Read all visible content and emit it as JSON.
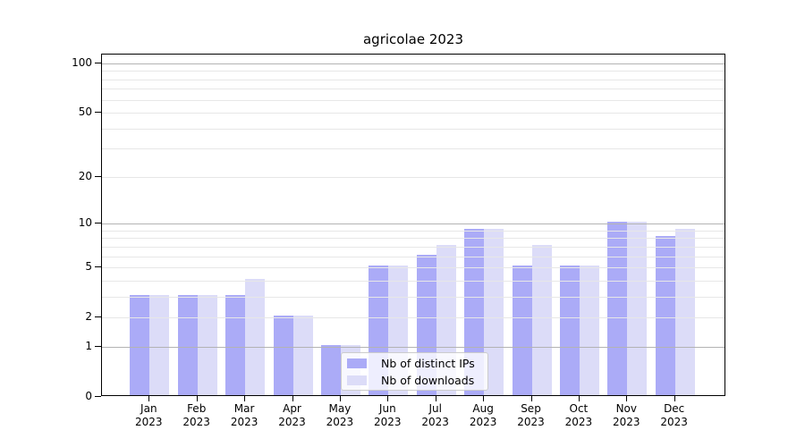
{
  "figure": {
    "background": "#ffffff"
  },
  "chart_data": {
    "type": "bar",
    "title": "agricolae 2023",
    "categories": [
      "Jan 2023",
      "Feb 2023",
      "Mar 2023",
      "Apr 2023",
      "May 2023",
      "Jun 2023",
      "Jul 2023",
      "Aug 2023",
      "Sep 2023",
      "Oct 2023",
      "Nov 2023",
      "Dec 2023"
    ],
    "series": [
      {
        "name": "Nb of distinct IPs",
        "color": "#ababf7",
        "values": [
          3,
          3,
          3,
          2,
          1,
          5,
          6,
          9,
          5,
          5,
          10,
          8
        ]
      },
      {
        "name": "Nb of downloads",
        "color": "#dcdcf8",
        "values": [
          3,
          3,
          4,
          2,
          1,
          5,
          7,
          9,
          7,
          5,
          10,
          9
        ]
      }
    ],
    "y_axis": {
      "scale": "log1p",
      "tick_labels": [
        "0",
        "1",
        "2",
        "5",
        "10",
        "20",
        "50",
        "100"
      ],
      "tick_values": [
        0,
        1,
        2,
        5,
        10,
        20,
        50,
        100
      ],
      "major_gridlines": [
        1,
        10,
        100
      ],
      "minor_gridlines": [
        2,
        3,
        4,
        5,
        6,
        7,
        8,
        9,
        20,
        30,
        40,
        50,
        60,
        70,
        80,
        90
      ],
      "ylim": [
        0,
        113
      ]
    },
    "x_axis": {
      "tick_labels_line2": "2023"
    },
    "legend": {
      "position": "lower center"
    },
    "grid": true,
    "colors": {
      "axis": "#000000",
      "major_grid": "#b3b3b3",
      "minor_grid": "#e7e7e7",
      "legend_border": "#cccccc"
    }
  }
}
